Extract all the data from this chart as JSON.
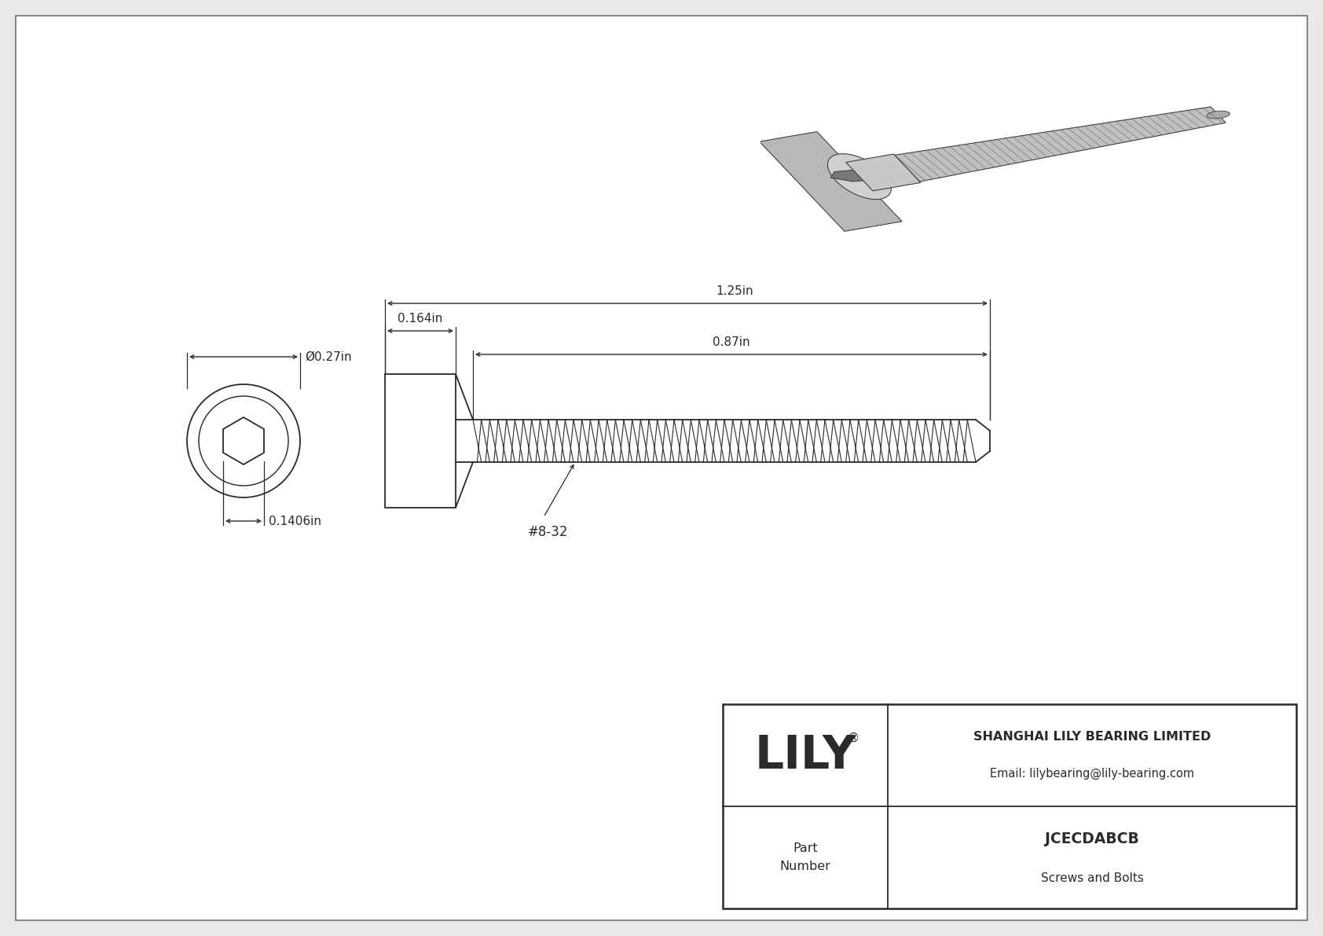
{
  "bg_color": "#e8e8e8",
  "page_bg": "#ffffff",
  "line_color": "#2a2a2a",
  "company": "SHANGHAI LILY BEARING LIMITED",
  "email": "Email: lilybearing@lily-bearing.com",
  "logo": "LILY",
  "part_label": "Part\nNumber",
  "part_number": "JCECDABCB",
  "category": "Screws and Bolts",
  "dim_diameter": "Ø0.27in",
  "dim_head_len": "0.164in",
  "dim_total_len": "1.25in",
  "dim_thread_len": "0.87in",
  "dim_hex_width": "0.1406in",
  "thread_label": "#8-32",
  "dim_fontsize": 11,
  "logo_fontsize": 42
}
